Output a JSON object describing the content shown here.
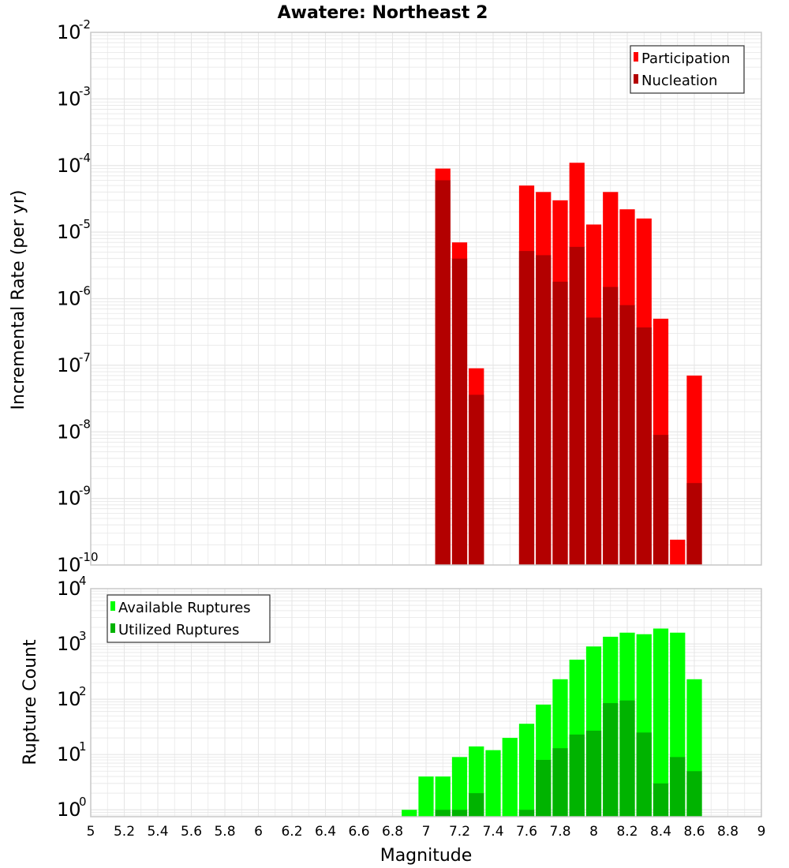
{
  "title": "Awatere: Northeast 2",
  "xlabel": "Magnitude",
  "colors": {
    "participation": "#ff0000",
    "nucleation": "#b30000",
    "available": "#00ff00",
    "utilized": "#00b300",
    "grid": "#e6e6e6",
    "frame": "#c8c8c8"
  },
  "chart_data": [
    {
      "type": "bar",
      "ylabel": "Incremental Rate (per yr)",
      "yscale": "log",
      "xlim": [
        5,
        9
      ],
      "ylim": [
        1e-10,
        0.01
      ],
      "ytick_bases": [
        "10",
        "10",
        "10",
        "10",
        "10",
        "10",
        "10",
        "10",
        "10"
      ],
      "ytick_exps": [
        "-10",
        "-9",
        "-8",
        "-7",
        "-6",
        "-5",
        "-4",
        "-3",
        "-2"
      ],
      "legend_position": "top-right",
      "x": [
        7.1,
        7.2,
        7.3,
        7.6,
        7.7,
        7.8,
        7.9,
        8.0,
        8.1,
        8.2,
        8.3,
        8.4,
        8.5,
        8.6
      ],
      "series": [
        {
          "name": "Participation",
          "values": [
            9e-05,
            7e-06,
            9e-08,
            5e-05,
            4e-05,
            3e-05,
            0.00011,
            1.3e-05,
            4e-05,
            2.2e-05,
            1.6e-05,
            5e-07,
            2.4e-10,
            7e-08
          ]
        },
        {
          "name": "Nucleation",
          "values": [
            6e-05,
            4e-06,
            3.6e-08,
            5.2e-06,
            4.5e-06,
            1.8e-06,
            6e-06,
            5.2e-07,
            1.5e-06,
            8e-07,
            3.7e-07,
            9e-09,
            null,
            1.7e-09
          ]
        }
      ]
    },
    {
      "type": "bar",
      "ylabel": "Rupture Count",
      "yscale": "log",
      "xlim": [
        5,
        9
      ],
      "ylim": [
        0.75,
        10000
      ],
      "ytick_bases": [
        "10",
        "10",
        "10",
        "10",
        "10"
      ],
      "ytick_exps": [
        "0",
        "1",
        "2",
        "3",
        "4"
      ],
      "legend_position": "top-left",
      "x": [
        6.9,
        7.0,
        7.1,
        7.2,
        7.3,
        7.4,
        7.5,
        7.6,
        7.7,
        7.8,
        7.9,
        8.0,
        8.1,
        8.2,
        8.3,
        8.4,
        8.5,
        8.6
      ],
      "series": [
        {
          "name": "Available Ruptures",
          "values": [
            1,
            4,
            4,
            9,
            14,
            12,
            20,
            36,
            80,
            230,
            520,
            900,
            1350,
            1600,
            1500,
            1900,
            1600,
            230
          ]
        },
        {
          "name": "Utilized Ruptures",
          "values": [
            null,
            null,
            1,
            1,
            2,
            null,
            null,
            1,
            8,
            13,
            23,
            27,
            85,
            95,
            25,
            3,
            9,
            5
          ]
        }
      ]
    }
  ],
  "xticks": [
    "5",
    "5.2",
    "5.4",
    "5.6",
    "5.8",
    "6",
    "6.2",
    "6.4",
    "6.6",
    "6.8",
    "7",
    "7.2",
    "7.4",
    "7.6",
    "7.8",
    "8",
    "8.2",
    "8.4",
    "8.6",
    "8.8",
    "9"
  ]
}
